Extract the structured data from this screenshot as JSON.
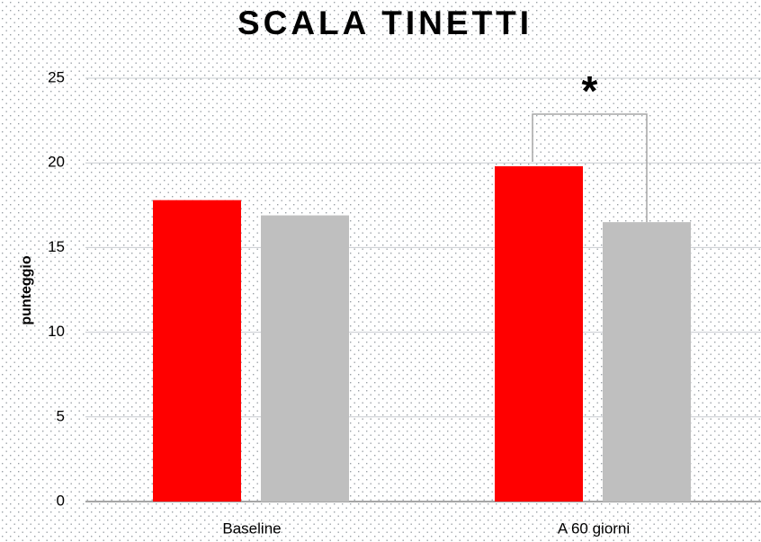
{
  "chart_data": {
    "type": "bar",
    "title": "SCALA TINETTI",
    "y_label": "punteggio",
    "categories": [
      "Baseline",
      "A 60 giorni"
    ],
    "series": [
      {
        "color": "#ff0000",
        "values": [
          17.8,
          19.8
        ]
      },
      {
        "color": "#bfbfbf",
        "values": [
          16.9,
          16.5
        ]
      }
    ],
    "annotation": "*",
    "ylim": [
      0,
      25
    ],
    "yticks": [
      0,
      5,
      10,
      15,
      20,
      25
    ],
    "grid": true
  }
}
